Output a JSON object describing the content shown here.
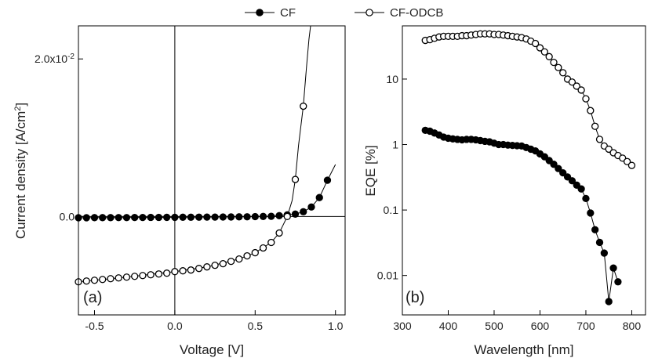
{
  "legend": [
    {
      "label": "CF",
      "marker": "filled"
    },
    {
      "label": "CF-ODCB",
      "marker": "open"
    }
  ],
  "chart_data": [
    {
      "type": "line",
      "panel_label": "(a)",
      "xlabel": "Voltage [V]",
      "ylabel_main": "Current density [A/cm",
      "ylabel_sup": "2",
      "ylabel_tail": "]",
      "xlim": [
        -0.6,
        1.06
      ],
      "ylim": [
        -0.0125,
        0.0242
      ],
      "xticks": [
        -0.5,
        0.0,
        0.5,
        1.0
      ],
      "xtick_labels": [
        "-0.5",
        "0.0",
        "0.5",
        "1.0"
      ],
      "yticks": [
        0.0,
        0.02
      ],
      "ytick_labels": [
        "0.0",
        "2.0x10"
      ],
      "ytick_sups": [
        "",
        "-2"
      ],
      "reference_lines": {
        "x": 0,
        "y": 0
      },
      "series": [
        {
          "name": "CF",
          "marker": "filled",
          "x": [
            -0.6,
            -0.55,
            -0.5,
            -0.45,
            -0.4,
            -0.35,
            -0.3,
            -0.25,
            -0.2,
            -0.15,
            -0.1,
            -0.05,
            0.0,
            0.05,
            0.1,
            0.15,
            0.2,
            0.25,
            0.3,
            0.35,
            0.4,
            0.45,
            0.5,
            0.55,
            0.6,
            0.65,
            0.7,
            0.75,
            0.8,
            0.85,
            0.9,
            0.95
          ],
          "y": [
            -0.00016,
            -0.00016,
            -0.00015,
            -0.00015,
            -0.00015,
            -0.00014,
            -0.00014,
            -0.00013,
            -0.00013,
            -0.00012,
            -0.00012,
            -0.00011,
            -0.00011,
            -0.0001,
            -0.0001,
            -9e-05,
            -8e-05,
            -8e-05,
            -7e-05,
            -6e-05,
            -5e-05,
            -4e-05,
            -2e-05,
            0.0,
            2e-05,
            0.0001,
            0.0002,
            0.0003,
            0.0006,
            0.0012,
            0.0024,
            0.0046
          ],
          "curve_x": [
            -0.6,
            -0.2,
            0.2,
            0.5,
            0.6,
            0.65,
            0.7,
            0.75,
            0.8,
            0.85,
            0.9,
            0.95,
            0.98,
            1.0
          ],
          "curve_y": [
            -0.00016,
            -0.00013,
            -8e-05,
            -2e-05,
            2e-05,
            0.0001,
            0.0002,
            0.0003,
            0.0006,
            0.0012,
            0.0024,
            0.0046,
            0.0058,
            0.0066
          ]
        },
        {
          "name": "CF-ODCB",
          "marker": "open",
          "x": [
            -0.6,
            -0.55,
            -0.5,
            -0.45,
            -0.4,
            -0.35,
            -0.3,
            -0.25,
            -0.2,
            -0.15,
            -0.1,
            -0.05,
            0.0,
            0.05,
            0.1,
            0.15,
            0.2,
            0.25,
            0.3,
            0.35,
            0.4,
            0.45,
            0.5,
            0.55,
            0.6,
            0.65,
            0.7,
            0.75,
            0.8
          ],
          "y": [
            -0.0083,
            -0.0082,
            -0.0081,
            -0.008,
            -0.0079,
            -0.0078,
            -0.0077,
            -0.0076,
            -0.0075,
            -0.0074,
            -0.0073,
            -0.0072,
            -0.007,
            -0.0069,
            -0.0068,
            -0.0066,
            -0.0064,
            -0.0062,
            -0.006,
            -0.0057,
            -0.0054,
            -0.005,
            -0.0046,
            -0.004,
            -0.0033,
            -0.0021,
            0.0,
            0.0047,
            0.014
          ],
          "curve_x": [
            -0.6,
            -0.3,
            0.0,
            0.2,
            0.4,
            0.5,
            0.6,
            0.65,
            0.7,
            0.73,
            0.75,
            0.77,
            0.8,
            0.82,
            0.835,
            0.845,
            0.85
          ],
          "curve_y": [
            -0.0083,
            -0.0077,
            -0.007,
            -0.0064,
            -0.0054,
            -0.0046,
            -0.0033,
            -0.0021,
            0.0,
            0.002,
            0.0047,
            0.009,
            0.014,
            0.019,
            0.0225,
            0.0242,
            0.0255
          ]
        }
      ]
    },
    {
      "type": "line",
      "panel_label": "(b)",
      "xlabel": "Wavelength [nm]",
      "ylabel": "EQE [%]",
      "yscale": "log",
      "xlim": [
        300,
        830
      ],
      "ylim": [
        0.0025,
        65
      ],
      "xticks": [
        300,
        400,
        500,
        600,
        700,
        800
      ],
      "xtick_labels": [
        "300",
        "400",
        "500",
        "600",
        "700",
        "800"
      ],
      "yticks": [
        0.01,
        0.1,
        1,
        10
      ],
      "ytick_labels": [
        "0.01",
        "0.1",
        "1",
        "10"
      ],
      "series": [
        {
          "name": "CF-ODCB",
          "marker": "open",
          "x": [
            350,
            360,
            370,
            380,
            390,
            400,
            410,
            420,
            430,
            440,
            450,
            460,
            470,
            480,
            490,
            500,
            510,
            520,
            530,
            540,
            550,
            560,
            570,
            580,
            590,
            600,
            610,
            620,
            630,
            640,
            650,
            660,
            670,
            680,
            690,
            700,
            710,
            720,
            730,
            740,
            750,
            760,
            770,
            780,
            790,
            800
          ],
          "y": [
            39,
            40,
            42,
            44,
            45,
            45,
            45,
            45,
            46,
            46,
            47,
            48,
            49,
            49,
            49,
            48,
            48,
            47,
            46,
            45,
            44,
            43,
            41,
            38,
            35,
            30,
            26,
            22,
            18,
            15,
            12.5,
            10,
            9,
            7.8,
            6.8,
            5,
            3.3,
            1.9,
            1.2,
            0.95,
            0.85,
            0.75,
            0.68,
            0.62,
            0.55,
            0.48
          ]
        },
        {
          "name": "CF",
          "marker": "filled",
          "x": [
            350,
            360,
            370,
            380,
            390,
            400,
            410,
            420,
            430,
            440,
            450,
            460,
            470,
            480,
            490,
            500,
            510,
            520,
            530,
            540,
            550,
            560,
            570,
            580,
            590,
            600,
            610,
            620,
            630,
            640,
            650,
            660,
            670,
            680,
            690,
            700,
            710,
            720,
            730,
            740,
            750,
            760,
            770
          ],
          "y": [
            1.65,
            1.6,
            1.5,
            1.4,
            1.3,
            1.25,
            1.22,
            1.2,
            1.18,
            1.2,
            1.2,
            1.18,
            1.15,
            1.12,
            1.1,
            1.05,
            1.0,
            1.0,
            0.98,
            0.97,
            0.96,
            0.95,
            0.9,
            0.85,
            0.8,
            0.72,
            0.65,
            0.57,
            0.5,
            0.43,
            0.37,
            0.32,
            0.28,
            0.24,
            0.21,
            0.15,
            0.09,
            0.05,
            0.032,
            0.022,
            0.004,
            0.013,
            0.008
          ]
        }
      ]
    }
  ]
}
